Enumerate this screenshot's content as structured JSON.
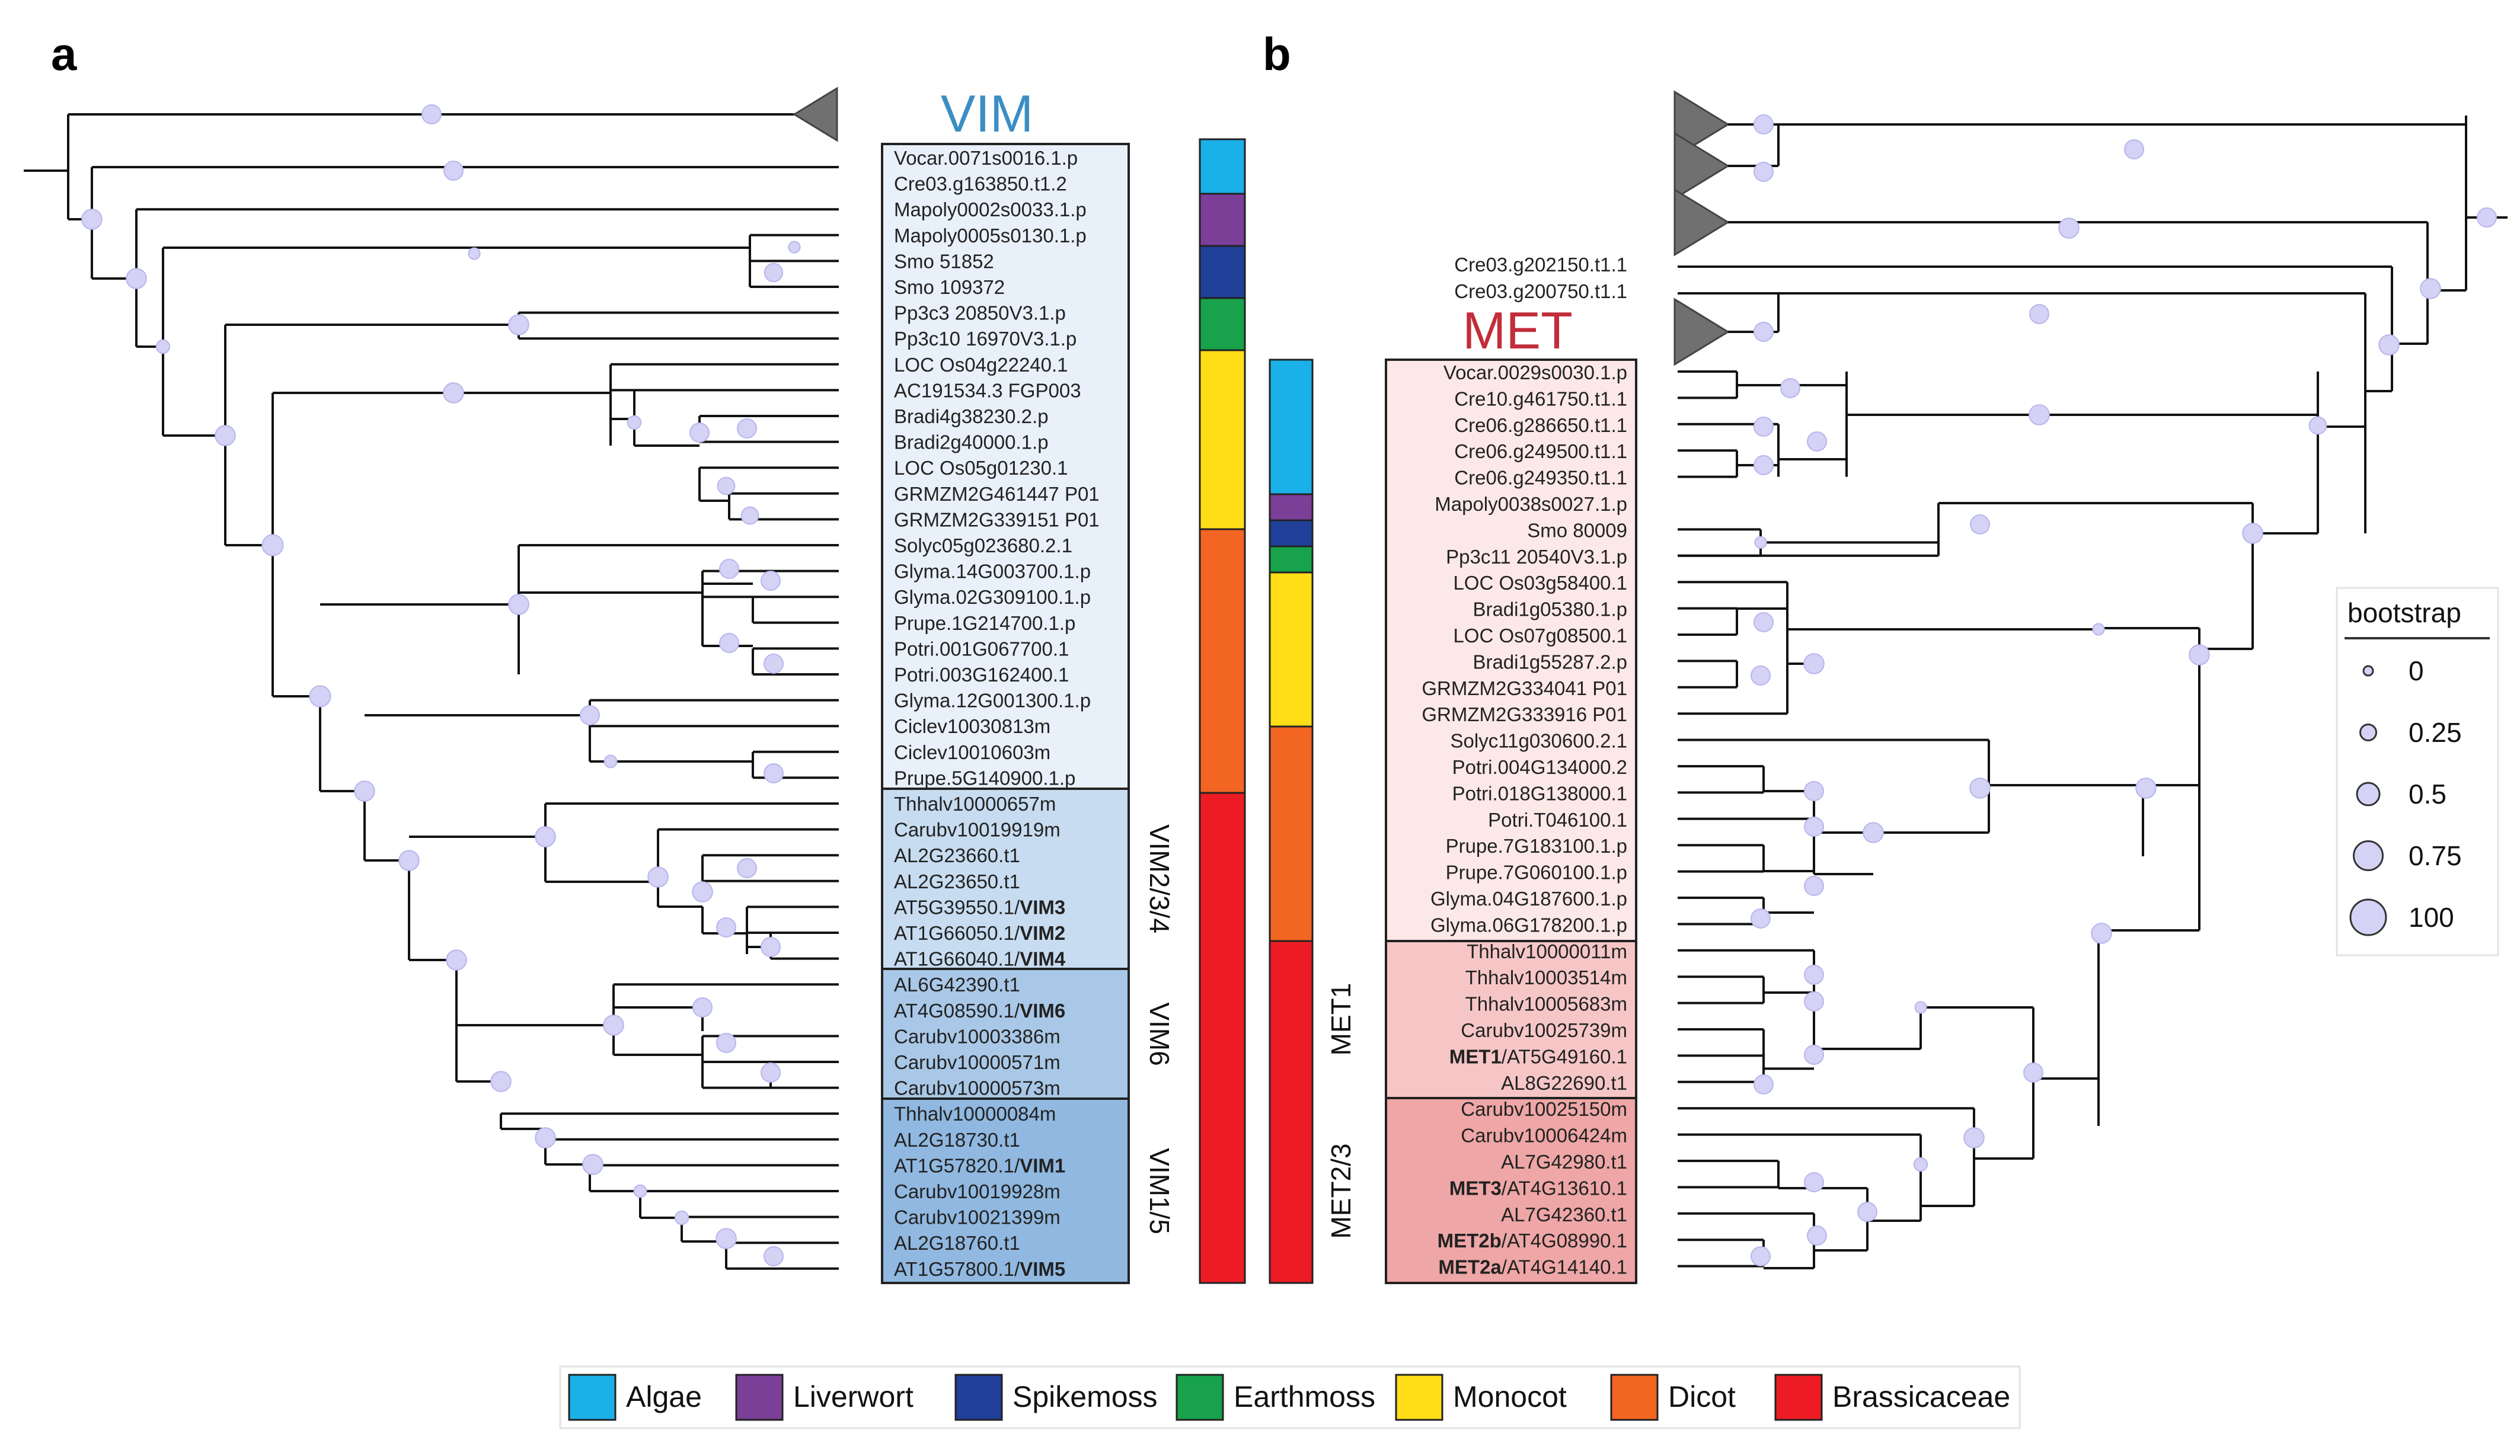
{
  "panels": {
    "a": "a",
    "b": "b"
  },
  "vim": {
    "title": "VIM",
    "genes": [
      {
        "t": "Vocar.0071s0016.1.p"
      },
      {
        "t": "Cre03.g163850.t1.2"
      },
      {
        "t": "Mapoly0002s0033.1.p"
      },
      {
        "t": "Mapoly0005s0130.1.p"
      },
      {
        "t": "Smo 51852"
      },
      {
        "t": "Smo 109372"
      },
      {
        "t": "Pp3c3 20850V3.1.p"
      },
      {
        "t": "Pp3c10 16970V3.1.p"
      },
      {
        "t": "LOC Os04g22240.1"
      },
      {
        "t": "AC191534.3 FGP003"
      },
      {
        "t": "Bradi4g38230.2.p"
      },
      {
        "t": "Bradi2g40000.1.p"
      },
      {
        "t": "LOC Os05g01230.1"
      },
      {
        "t": "GRMZM2G461447 P01"
      },
      {
        "t": "GRMZM2G339151 P01"
      },
      {
        "t": "Solyc05g023680.2.1"
      },
      {
        "t": "Glyma.14G003700.1.p"
      },
      {
        "t": "Glyma.02G309100.1.p"
      },
      {
        "t": "Prupe.1G214700.1.p"
      },
      {
        "t": "Potri.001G067700.1"
      },
      {
        "t": "Potri.003G162400.1"
      },
      {
        "t": "Glyma.12G001300.1.p"
      },
      {
        "t": "Ciclev10030813m"
      },
      {
        "t": "Ciclev10010603m"
      },
      {
        "t": "Prupe.5G140900.1.p"
      },
      {
        "t": "Thhalv10000657m"
      },
      {
        "t": "Carubv10019919m"
      },
      {
        "t": "AL2G23660.t1"
      },
      {
        "t": "AL2G23650.t1"
      },
      {
        "t": "AT5G39550.1/",
        "b": "VIM3"
      },
      {
        "t": "AT1G66050.1/",
        "b": "VIM2"
      },
      {
        "t": "AT1G66040.1/",
        "b": "VIM4"
      },
      {
        "t": "AL6G42390.t1"
      },
      {
        "t": "AT4G08590.1/",
        "b": "VIM6"
      },
      {
        "t": "Carubv10003386m"
      },
      {
        "t": "Carubv10000571m"
      },
      {
        "t": "Carubv10000573m"
      },
      {
        "t": "Thhalv10000084m"
      },
      {
        "t": "AL2G18730.t1"
      },
      {
        "t": "AT1G57820.1/",
        "b": "VIM1"
      },
      {
        "t": "Carubv10019928m"
      },
      {
        "t": "Carubv10021399m"
      },
      {
        "t": "AL2G18760.t1"
      },
      {
        "t": "AT1G57800.1/",
        "b": "VIM5"
      }
    ],
    "clades": [
      "VIM2/3/4",
      "VIM6",
      "VIM1/5"
    ]
  },
  "met": {
    "title": "MET",
    "outside_genes": [
      "Cre03.g202150.t1.1",
      "Cre03.g200750.t1.1"
    ],
    "genes": [
      {
        "t": "Vocar.0029s0030.1.p"
      },
      {
        "t": "Cre10.g461750.t1.1"
      },
      {
        "t": "Cre06.g286650.t1.1"
      },
      {
        "t": "Cre06.g249500.t1.1"
      },
      {
        "t": "Cre06.g249350.t1.1"
      },
      {
        "t": "Mapoly0038s0027.1.p"
      },
      {
        "t": "Smo 80009"
      },
      {
        "t": "Pp3c11 20540V3.1.p"
      },
      {
        "t": "LOC Os03g58400.1"
      },
      {
        "t": "Bradi1g05380.1.p"
      },
      {
        "t": "LOC Os07g08500.1"
      },
      {
        "t": "Bradi1g55287.2.p"
      },
      {
        "t": "GRMZM2G334041 P01"
      },
      {
        "t": "GRMZM2G333916 P01"
      },
      {
        "t": "Solyc11g030600.2.1"
      },
      {
        "t": "Potri.004G134000.2"
      },
      {
        "t": "Potri.018G138000.1"
      },
      {
        "t": "Potri.T046100.1"
      },
      {
        "t": "Prupe.7G183100.1.p"
      },
      {
        "t": "Prupe.7G060100.1.p"
      },
      {
        "t": "Glyma.04G187600.1.p"
      },
      {
        "t": "Glyma.06G178200.1.p"
      },
      {
        "t": "Thhalv10000011m"
      },
      {
        "t": "Thhalv10003514m"
      },
      {
        "t": "Thhalv10005683m"
      },
      {
        "t": "Carubv10025739m"
      },
      {
        "b": "MET1",
        "t": "/AT5G49160.1"
      },
      {
        "t": "AL8G22690.t1"
      },
      {
        "t": "Carubv10025150m"
      },
      {
        "t": "Carubv10006424m"
      },
      {
        "t": "AL7G42980.t1"
      },
      {
        "b": "MET3",
        "t": "/AT4G13610.1"
      },
      {
        "t": "AL7G42360.t1"
      },
      {
        "b": "MET2b",
        "t": "/AT4G08990.1"
      },
      {
        "b": "MET2a",
        "t": "/AT4G14140.1"
      }
    ],
    "clades": [
      "MET1",
      "MET2/3"
    ]
  },
  "legend": [
    {
      "label": "Algae",
      "color": "#1ab0e8"
    },
    {
      "label": "Liverwort",
      "color": "#7b3f98"
    },
    {
      "label": "Spikemoss",
      "color": "#1f3f98"
    },
    {
      "label": "Earthmoss",
      "color": "#17a24b"
    },
    {
      "label": "Monocot",
      "color": "#ffde17"
    },
    {
      "label": "Dicot",
      "color": "#f26522"
    },
    {
      "label": "Brassicaceae",
      "color": "#ed1c24"
    }
  ],
  "bootstrap_legend": {
    "title": "bootstrap",
    "levels": [
      {
        "label": "0",
        "value": 0
      },
      {
        "label": "0.25",
        "value": 0.25
      },
      {
        "label": "0.5",
        "value": 0.5
      },
      {
        "label": "0.75",
        "value": 0.75
      },
      {
        "label": "100",
        "value": 1
      }
    ]
  },
  "colors": {
    "vim_title": "#3b8ec4",
    "met_title": "#c22d3a",
    "node": "#d4d2f5",
    "node_stroke": "#b8b5ea",
    "collapsed": "#707070"
  }
}
